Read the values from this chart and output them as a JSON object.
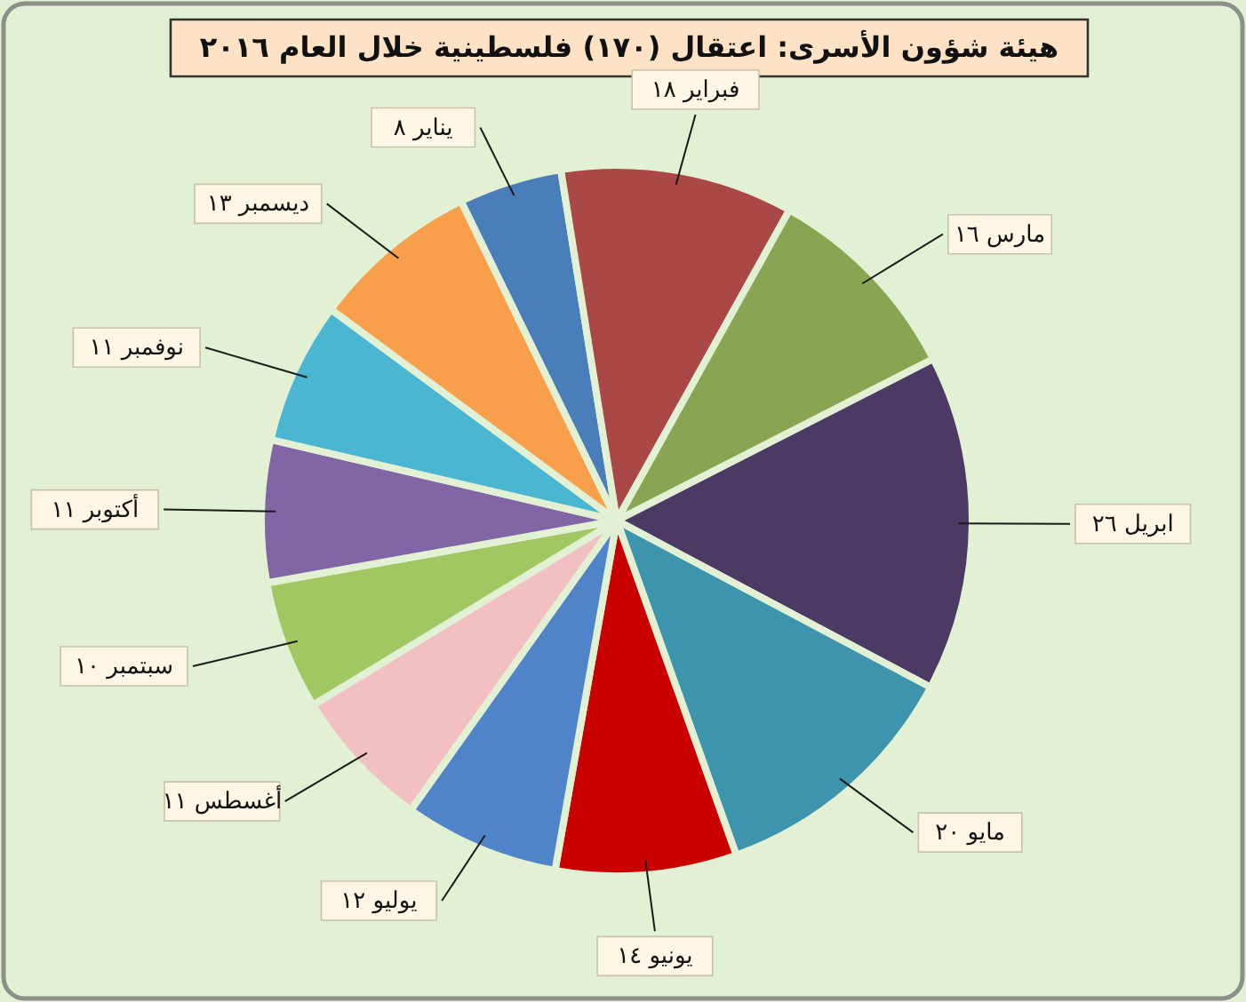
{
  "chart_data": {
    "type": "pie",
    "title": "هيئة شؤون الأسرى: اعتقال (١٧٠) فلسطينية خلال العام ٢٠١٦",
    "categories": [
      "يناير",
      "فبراير",
      "مارس",
      "ابريل",
      "مايو",
      "يونيو",
      "يوليو",
      "أغسطس",
      "سبتمبر",
      "أكتوبر",
      "نوفمبر",
      "ديسمبر"
    ],
    "values": [
      8,
      18,
      16,
      26,
      20,
      14,
      12,
      11,
      10,
      11,
      11,
      13
    ],
    "value_labels": [
      "٨",
      "١٨",
      "١٦",
      "٢٦",
      "٢٠",
      "١٤",
      "١٢",
      "١١",
      "١٠",
      "١١",
      "١١",
      "١٣"
    ],
    "colors": [
      "#4a7ebb",
      "#a94846",
      "#8aa552",
      "#4b3b64",
      "#3d94ac",
      "#c80000",
      "#4f85c8",
      "#f2c0c2",
      "#a0c761",
      "#8165a5",
      "#4ab6d2",
      "#f79f4b"
    ]
  }
}
